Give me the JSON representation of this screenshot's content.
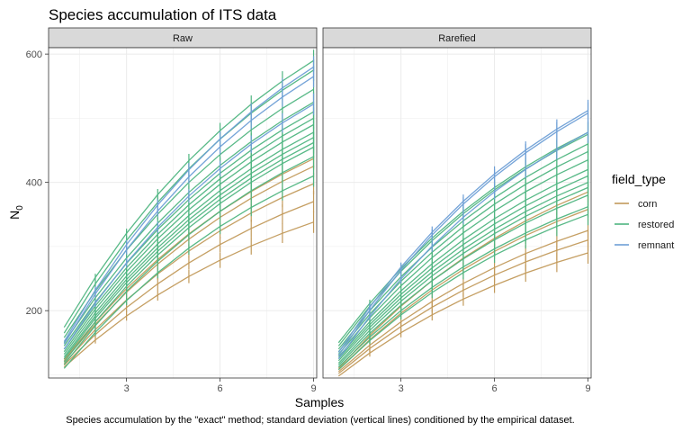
{
  "title": "Species accumulation of ITS data",
  "caption": "Species accumulation by the \"exact\" method; standard deviation (vertical lines) conditioned by the empirical dataset.",
  "colors": {
    "corn": "#c29a5b",
    "restored": "#4fb581",
    "remnant": "#6e9fd6",
    "panel_strip": "#d9d9d9",
    "grid": "#ebebeb"
  },
  "chart_data": {
    "type": "line",
    "xlabel": "Samples",
    "ylabel": "N",
    "ylabel_subscript": "0",
    "x": [
      1,
      2,
      3,
      4,
      5,
      6,
      7,
      8,
      9
    ],
    "xlim": [
      0.5,
      9.1
    ],
    "ylim": [
      95,
      610
    ],
    "x_ticks": [
      "3",
      "6",
      "9"
    ],
    "y_ticks": [
      "200",
      "400",
      "600"
    ],
    "grid": true,
    "legend": {
      "title": "field_type",
      "placement": "right",
      "entries": [
        {
          "label": "corn",
          "color_key": "corn"
        },
        {
          "label": "restored",
          "color_key": "restored"
        },
        {
          "label": "remnant",
          "color_key": "remnant"
        }
      ]
    },
    "panels": [
      {
        "label": "Raw",
        "series": [
          {
            "group": "corn",
            "v1": 124,
            "v9": 437
          },
          {
            "group": "corn",
            "v1": 122,
            "v9": 425
          },
          {
            "group": "corn",
            "v1": 118,
            "v9": 398
          },
          {
            "group": "corn",
            "v1": 115,
            "v9": 370
          },
          {
            "group": "corn",
            "v1": 112,
            "v9": 338
          },
          {
            "group": "restored",
            "v1": 174,
            "v9": 590
          },
          {
            "group": "restored",
            "v1": 165,
            "v9": 575
          },
          {
            "group": "restored",
            "v1": 158,
            "v9": 545
          },
          {
            "group": "restored",
            "v1": 150,
            "v9": 525
          },
          {
            "group": "restored",
            "v1": 145,
            "v9": 510
          },
          {
            "group": "restored",
            "v1": 140,
            "v9": 500
          },
          {
            "group": "restored",
            "v1": 136,
            "v9": 490
          },
          {
            "group": "restored",
            "v1": 132,
            "v9": 478
          },
          {
            "group": "restored",
            "v1": 128,
            "v9": 470
          },
          {
            "group": "restored",
            "v1": 125,
            "v9": 462
          },
          {
            "group": "restored",
            "v1": 120,
            "v9": 455
          },
          {
            "group": "restored",
            "v1": 116,
            "v9": 440
          },
          {
            "group": "restored",
            "v1": 110,
            "v9": 410
          },
          {
            "group": "remnant",
            "v1": 152,
            "v9": 580
          },
          {
            "group": "remnant",
            "v1": 148,
            "v9": 565
          },
          {
            "group": "remnant",
            "v1": 140,
            "v9": 522
          }
        ]
      },
      {
        "label": "Rarefied",
        "series": [
          {
            "group": "corn",
            "v1": 110,
            "v9": 385
          },
          {
            "group": "corn",
            "v1": 108,
            "v9": 358
          },
          {
            "group": "corn",
            "v1": 105,
            "v9": 325
          },
          {
            "group": "corn",
            "v1": 102,
            "v9": 310
          },
          {
            "group": "corn",
            "v1": 98,
            "v9": 290
          },
          {
            "group": "restored",
            "v1": 150,
            "v9": 478
          },
          {
            "group": "restored",
            "v1": 145,
            "v9": 475
          },
          {
            "group": "restored",
            "v1": 140,
            "v9": 460
          },
          {
            "group": "restored",
            "v1": 136,
            "v9": 448
          },
          {
            "group": "restored",
            "v1": 132,
            "v9": 435
          },
          {
            "group": "restored",
            "v1": 128,
            "v9": 420
          },
          {
            "group": "restored",
            "v1": 125,
            "v9": 410
          },
          {
            "group": "restored",
            "v1": 122,
            "v9": 400
          },
          {
            "group": "restored",
            "v1": 118,
            "v9": 392
          },
          {
            "group": "restored",
            "v1": 115,
            "v9": 380
          },
          {
            "group": "restored",
            "v1": 112,
            "v9": 362
          },
          {
            "group": "restored",
            "v1": 108,
            "v9": 350
          },
          {
            "group": "remnant",
            "v1": 135,
            "v9": 512
          },
          {
            "group": "remnant",
            "v1": 130,
            "v9": 508
          },
          {
            "group": "remnant",
            "v1": 125,
            "v9": 478
          }
        ]
      }
    ]
  }
}
